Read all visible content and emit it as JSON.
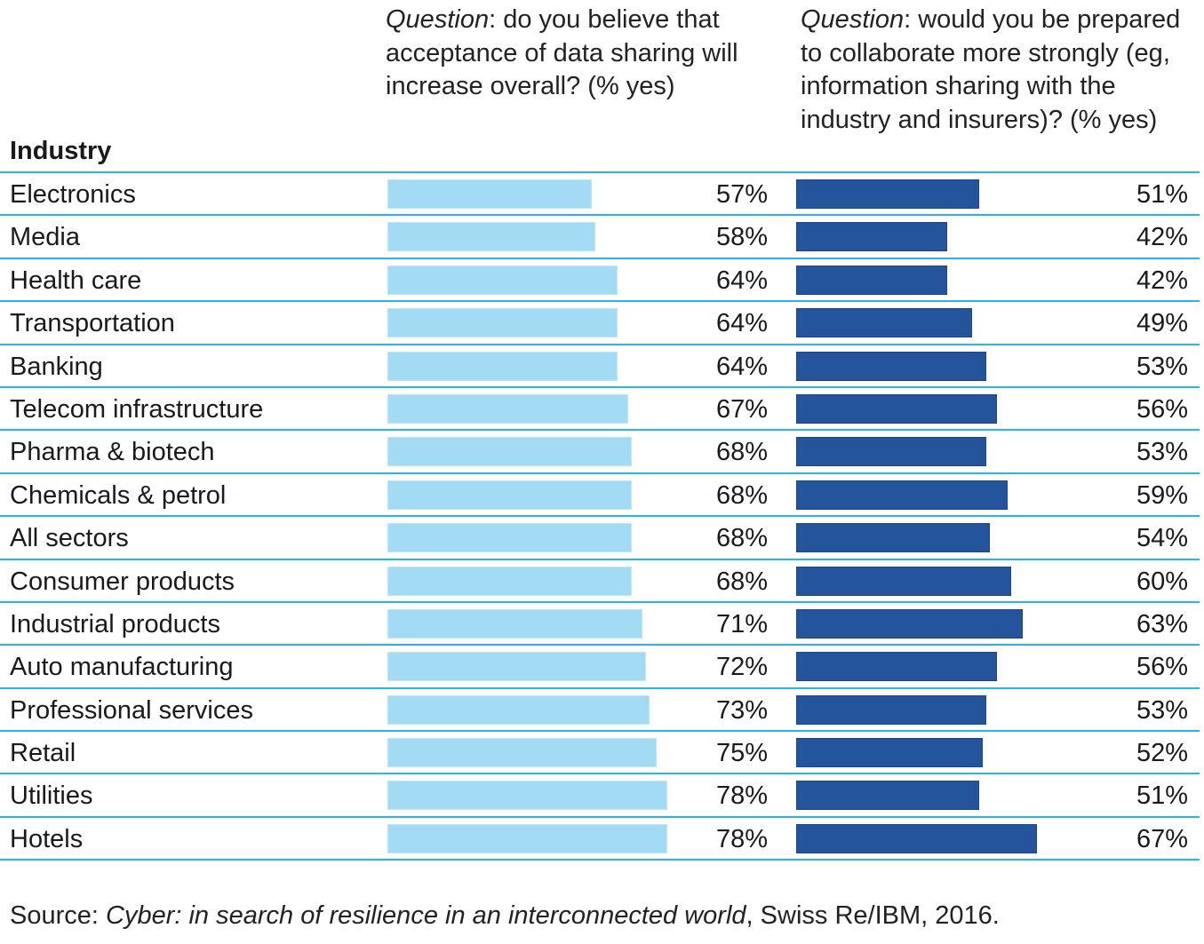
{
  "chart_data": {
    "type": "table",
    "title": "",
    "row_header": "Industry",
    "columns": [
      {
        "question_prefix": "Question",
        "question_text": ": do you believe that acceptance of data sharing will increase overall? (% yes)",
        "color": "#a3dbf5"
      },
      {
        "question_prefix": "Question",
        "question_text": ": would you be prepared to collaborate more strongly (eg, information sharing with the industry and insurers)? (% yes)",
        "color": "#24559c"
      }
    ],
    "categories": [
      "Electronics",
      "Media",
      "Health care",
      "Transportation",
      "Banking",
      "Telecom infrastructure",
      "Pharma & biotech",
      "Chemicals & petrol",
      "All sectors",
      "Consumer products",
      "Industrial products",
      "Auto manufacturing",
      "Professional services",
      "Retail",
      "Utilities",
      "Hotels"
    ],
    "series": [
      {
        "name": "Acceptance of data sharing will increase (% yes)",
        "values": [
          57,
          58,
          64,
          64,
          64,
          67,
          68,
          68,
          68,
          68,
          71,
          72,
          73,
          75,
          78,
          78
        ]
      },
      {
        "name": "Prepared to collaborate more strongly (% yes)",
        "values": [
          51,
          42,
          42,
          49,
          53,
          56,
          53,
          59,
          54,
          60,
          63,
          56,
          53,
          52,
          51,
          67
        ]
      }
    ],
    "unit": "%",
    "xlim": [
      0,
      100
    ]
  },
  "source": {
    "prefix": "Source: ",
    "title": "Cyber: in search of resilience in an interconnected world",
    "suffix": ", Swiss Re/IBM, 2016."
  }
}
